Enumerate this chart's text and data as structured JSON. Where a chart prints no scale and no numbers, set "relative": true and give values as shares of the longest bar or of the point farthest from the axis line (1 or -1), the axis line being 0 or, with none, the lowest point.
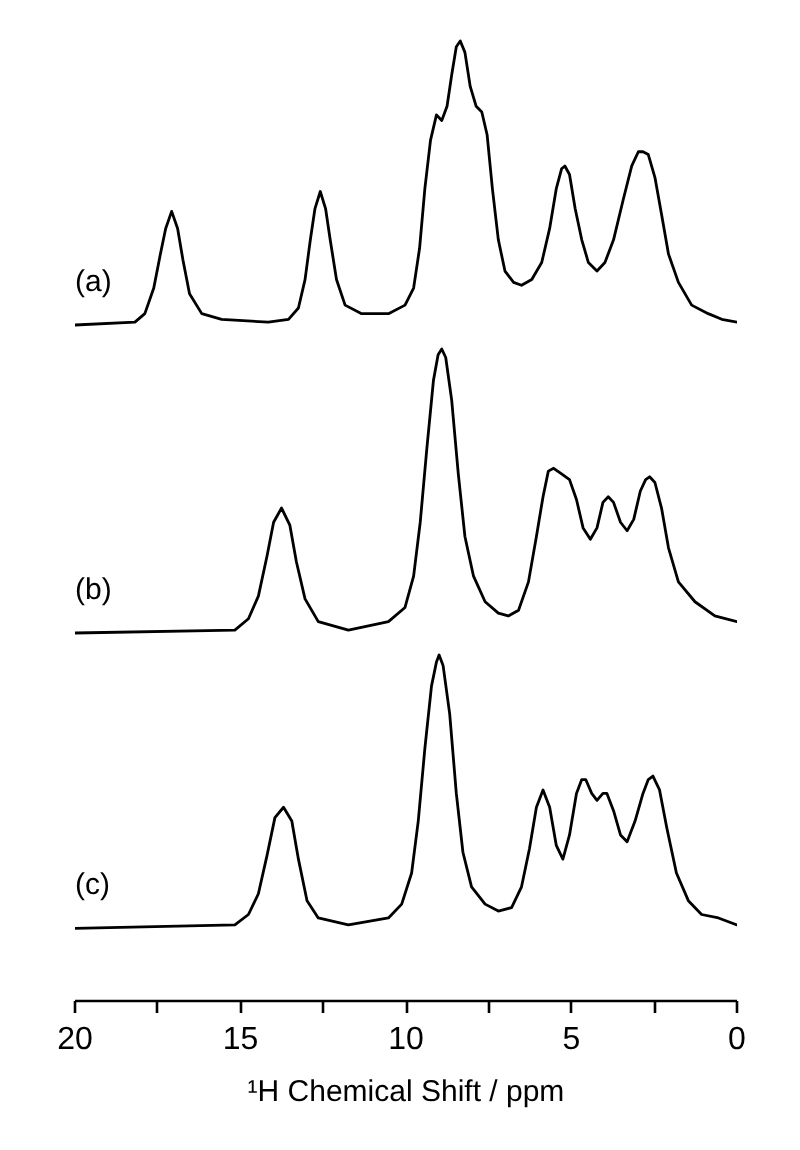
{
  "chart_data": [
    {
      "type": "line",
      "relative": true,
      "xlim": [
        20,
        0
      ],
      "tick_labels": false,
      "x": [
        20.0,
        18.19,
        17.89,
        17.62,
        17.42,
        17.26,
        17.08,
        16.9,
        16.74,
        16.54,
        16.17,
        15.57,
        14.16,
        13.55,
        13.25,
        13.05,
        12.89,
        12.75,
        12.59,
        12.43,
        12.29,
        12.1,
        11.84,
        11.34,
        10.53,
        10.03,
        9.77,
        9.59,
        9.43,
        9.26,
        9.08,
        8.92,
        8.76,
        8.62,
        8.48,
        8.36,
        8.22,
        8.06,
        7.88,
        7.71,
        7.55,
        7.39,
        7.21,
        7.01,
        6.75,
        6.51,
        6.2,
        5.9,
        5.66,
        5.46,
        5.3,
        5.2,
        5.06,
        4.89,
        4.69,
        4.49,
        4.23,
        3.99,
        3.73,
        3.44,
        3.18,
        2.98,
        2.84,
        2.68,
        2.48,
        2.28,
        2.07,
        1.77,
        1.37,
        0.87,
        0.46,
        0.0
      ],
      "series": [
        {
          "name": "(a)",
          "color": "#000000",
          "values": [
            0.0,
            0.01,
            0.04,
            0.13,
            0.25,
            0.34,
            0.4,
            0.34,
            0.23,
            0.11,
            0.04,
            0.02,
            0.01,
            0.02,
            0.06,
            0.16,
            0.3,
            0.41,
            0.47,
            0.41,
            0.3,
            0.16,
            0.07,
            0.04,
            0.04,
            0.07,
            0.13,
            0.27,
            0.48,
            0.65,
            0.74,
            0.72,
            0.77,
            0.88,
            0.98,
            1.0,
            0.96,
            0.84,
            0.77,
            0.75,
            0.67,
            0.48,
            0.3,
            0.19,
            0.15,
            0.14,
            0.16,
            0.22,
            0.34,
            0.48,
            0.55,
            0.56,
            0.53,
            0.41,
            0.3,
            0.22,
            0.19,
            0.22,
            0.3,
            0.44,
            0.56,
            0.61,
            0.61,
            0.6,
            0.52,
            0.39,
            0.25,
            0.15,
            0.07,
            0.04,
            0.02,
            0.01
          ]
        }
      ]
    },
    {
      "type": "line",
      "relative": true,
      "xlim": [
        20,
        0
      ],
      "tick_labels": false,
      "x": [
        20.0,
        15.17,
        14.76,
        14.46,
        14.2,
        14.0,
        13.76,
        13.51,
        13.31,
        13.05,
        12.65,
        11.74,
        10.53,
        10.03,
        9.77,
        9.57,
        9.37,
        9.17,
        9.03,
        8.92,
        8.8,
        8.62,
        8.42,
        8.22,
        7.96,
        7.61,
        7.21,
        6.91,
        6.6,
        6.3,
        6.06,
        5.86,
        5.7,
        5.54,
        5.3,
        5.06,
        4.85,
        4.65,
        4.43,
        4.23,
        4.05,
        3.89,
        3.73,
        3.52,
        3.32,
        3.12,
        2.92,
        2.76,
        2.64,
        2.48,
        2.28,
        2.07,
        1.77,
        1.27,
        0.67,
        0.0
      ],
      "series": [
        {
          "name": "(b)",
          "color": "#000000",
          "values": [
            0.0,
            0.01,
            0.05,
            0.13,
            0.27,
            0.39,
            0.44,
            0.38,
            0.25,
            0.12,
            0.04,
            0.01,
            0.04,
            0.09,
            0.2,
            0.39,
            0.65,
            0.89,
            0.98,
            1.0,
            0.97,
            0.82,
            0.56,
            0.34,
            0.2,
            0.11,
            0.07,
            0.06,
            0.08,
            0.18,
            0.34,
            0.48,
            0.57,
            0.58,
            0.56,
            0.54,
            0.47,
            0.37,
            0.33,
            0.37,
            0.46,
            0.48,
            0.46,
            0.39,
            0.36,
            0.4,
            0.5,
            0.54,
            0.55,
            0.53,
            0.44,
            0.3,
            0.18,
            0.11,
            0.06,
            0.04
          ]
        }
      ]
    },
    {
      "type": "line",
      "relative": true,
      "xlim": [
        20,
        0
      ],
      "xticks": [
        20,
        {
          "value": 17.5,
          "label": null
        },
        15,
        {
          "value": 12.5,
          "label": null
        },
        10,
        {
          "value": 7.5,
          "label": null
        },
        5,
        {
          "value": 2.5,
          "label": null
        },
        0
      ],
      "xlabel": "¹H Chemical Shift / ppm",
      "x": [
        20.0,
        15.17,
        14.76,
        14.46,
        14.2,
        13.96,
        13.7,
        13.45,
        13.25,
        12.99,
        12.65,
        11.74,
        10.53,
        10.13,
        9.83,
        9.63,
        9.43,
        9.23,
        9.08,
        9.0,
        8.88,
        8.68,
        8.48,
        8.28,
        8.02,
        7.61,
        7.21,
        6.81,
        6.51,
        6.27,
        6.06,
        5.86,
        5.66,
        5.46,
        5.26,
        5.06,
        4.85,
        4.69,
        4.57,
        4.39,
        4.23,
        4.05,
        3.93,
        3.73,
        3.52,
        3.32,
        3.08,
        2.84,
        2.68,
        2.54,
        2.34,
        2.12,
        1.83,
        1.47,
        1.07,
        0.56,
        0.0
      ],
      "series": [
        {
          "name": "(c)",
          "color": "#000000",
          "values": [
            0.21,
            0.22,
            0.25,
            0.31,
            0.42,
            0.53,
            0.56,
            0.52,
            0.41,
            0.29,
            0.24,
            0.22,
            0.24,
            0.28,
            0.37,
            0.52,
            0.73,
            0.91,
            0.98,
            1.0,
            0.97,
            0.83,
            0.6,
            0.43,
            0.33,
            0.28,
            0.26,
            0.27,
            0.33,
            0.44,
            0.56,
            0.61,
            0.56,
            0.45,
            0.41,
            0.48,
            0.6,
            0.64,
            0.64,
            0.6,
            0.58,
            0.6,
            0.6,
            0.55,
            0.48,
            0.46,
            0.52,
            0.6,
            0.64,
            0.65,
            0.61,
            0.5,
            0.37,
            0.29,
            0.25,
            0.24,
            0.22
          ]
        }
      ]
    }
  ]
}
